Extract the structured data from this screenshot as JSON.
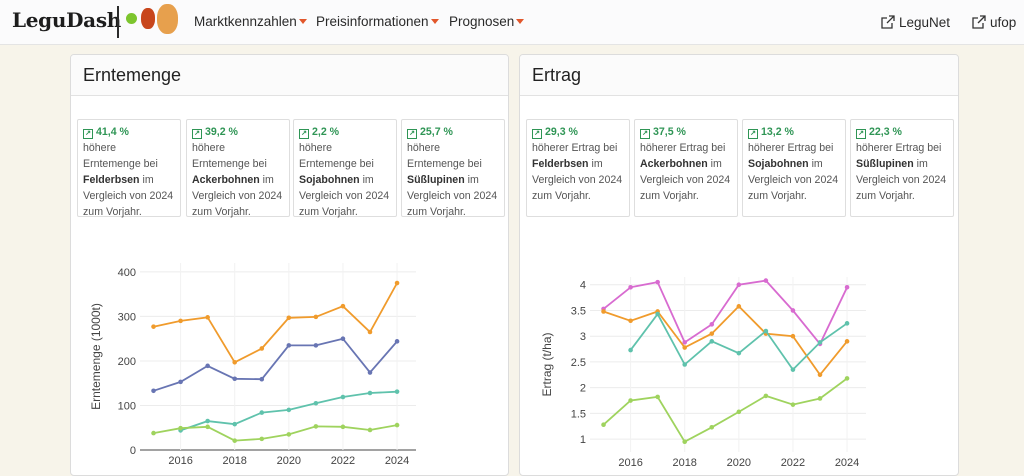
{
  "nav": {
    "brand": "LeguDash",
    "logo_colors": [
      "#7dc52e",
      "#c8461c",
      "#e7a04d"
    ],
    "menu": [
      "Marktkennzahlen",
      "Preisinformationen",
      "Prognosen"
    ],
    "links": [
      "LeguNet",
      "ufop"
    ],
    "caret_color": "#e2572b"
  },
  "panels": [
    {
      "title": "Erntemenge",
      "stats": [
        {
          "pct": "41,4 %",
          "pre": "höhere Erntemenge bei ",
          "crop": "Felderbsen",
          "post": " im Vergleich von 2024 zum Vorjahr."
        },
        {
          "pct": "39,2 %",
          "pre": "höhere Erntemenge bei ",
          "crop": "Ackerbohnen",
          "post": " im Vergleich von 2024 zum Vorjahr."
        },
        {
          "pct": "2,2 %",
          "pre": "höhere Erntemenge bei ",
          "crop": "Sojabohnen",
          "post": " im Vergleich von 2024 zum Vorjahr."
        },
        {
          "pct": "25,7 %",
          "pre": "höhere Erntemenge bei ",
          "crop": "Süßlupinen",
          "post": " im Vergleich von 2024 zum Vorjahr."
        }
      ]
    },
    {
      "title": "Ertrag",
      "stats": [
        {
          "pct": "29,3 %",
          "pre": "höherer Ertrag bei ",
          "crop": "Felderbsen",
          "post": " im Vergleich von 2024 zum Vorjahr."
        },
        {
          "pct": "37,5 %",
          "pre": "höherer Ertrag bei ",
          "crop": "Ackerbohnen",
          "post": " im Vergleich von 2024 zum Vorjahr."
        },
        {
          "pct": "13,2 %",
          "pre": "höherer Ertrag bei ",
          "crop": "Sojabohnen",
          "post": " im Vergleich von 2024 zum Vorjahr."
        },
        {
          "pct": "22,3 %",
          "pre": "höherer Ertrag bei ",
          "crop": "Süßlupinen",
          "post": " im Vergleich von 2024 zum Vorjahr."
        }
      ]
    }
  ],
  "chart_data": [
    {
      "type": "line",
      "title": "",
      "xlabel": "",
      "ylabel": "Erntemenge (1000t)",
      "x": [
        2015,
        2016,
        2017,
        2018,
        2019,
        2020,
        2021,
        2022,
        2023,
        2024
      ],
      "xticks": [
        2016,
        2018,
        2020,
        2022,
        2024
      ],
      "yticks": [
        0,
        100,
        200,
        300,
        400
      ],
      "ylim": [
        0,
        420
      ],
      "xlim": [
        2014.5,
        2024.7
      ],
      "series": [
        {
          "color": "#f09b2c",
          "values": [
            277,
            290,
            298,
            197,
            228,
            297,
            299,
            323,
            265,
            375
          ]
        },
        {
          "color": "#6875b3",
          "values": [
            133,
            153,
            189,
            160,
            159,
            235,
            235,
            250,
            174,
            244
          ]
        },
        {
          "color": "#5fc2ac",
          "values": [
            null,
            44,
            65,
            58,
            84,
            90,
            105,
            119,
            128,
            131
          ]
        },
        {
          "color": "#9fd35e",
          "values": [
            38,
            49,
            52,
            21,
            25,
            35,
            53,
            52,
            45,
            56
          ]
        }
      ]
    },
    {
      "type": "line",
      "title": "",
      "xlabel": "",
      "ylabel": "Ertrag (t/ha)",
      "x": [
        2015,
        2016,
        2017,
        2018,
        2019,
        2020,
        2021,
        2022,
        2023,
        2024
      ],
      "xticks": [
        2016,
        2018,
        2020,
        2022,
        2024
      ],
      "yticks": [
        1,
        1.5,
        2,
        2.5,
        3,
        3.5,
        4
      ],
      "ylim": [
        0.75,
        4.15
      ],
      "xlim": [
        2014.5,
        2024.7
      ],
      "series": [
        {
          "color": "#d86bd0",
          "values": [
            3.53,
            3.95,
            4.05,
            2.88,
            3.23,
            4.0,
            4.08,
            3.5,
            2.85,
            3.95
          ]
        },
        {
          "color": "#f09b2c",
          "values": [
            3.48,
            3.3,
            3.48,
            2.78,
            3.05,
            3.58,
            3.05,
            3.0,
            2.25,
            2.9
          ]
        },
        {
          "color": "#5fc2ac",
          "values": [
            null,
            2.73,
            3.43,
            2.45,
            2.9,
            2.67,
            3.1,
            2.35,
            2.88,
            3.25
          ]
        },
        {
          "color": "#9fd35e",
          "values": [
            1.28,
            1.75,
            1.82,
            0.95,
            1.23,
            1.53,
            1.84,
            1.67,
            1.79,
            2.18
          ]
        }
      ]
    }
  ]
}
